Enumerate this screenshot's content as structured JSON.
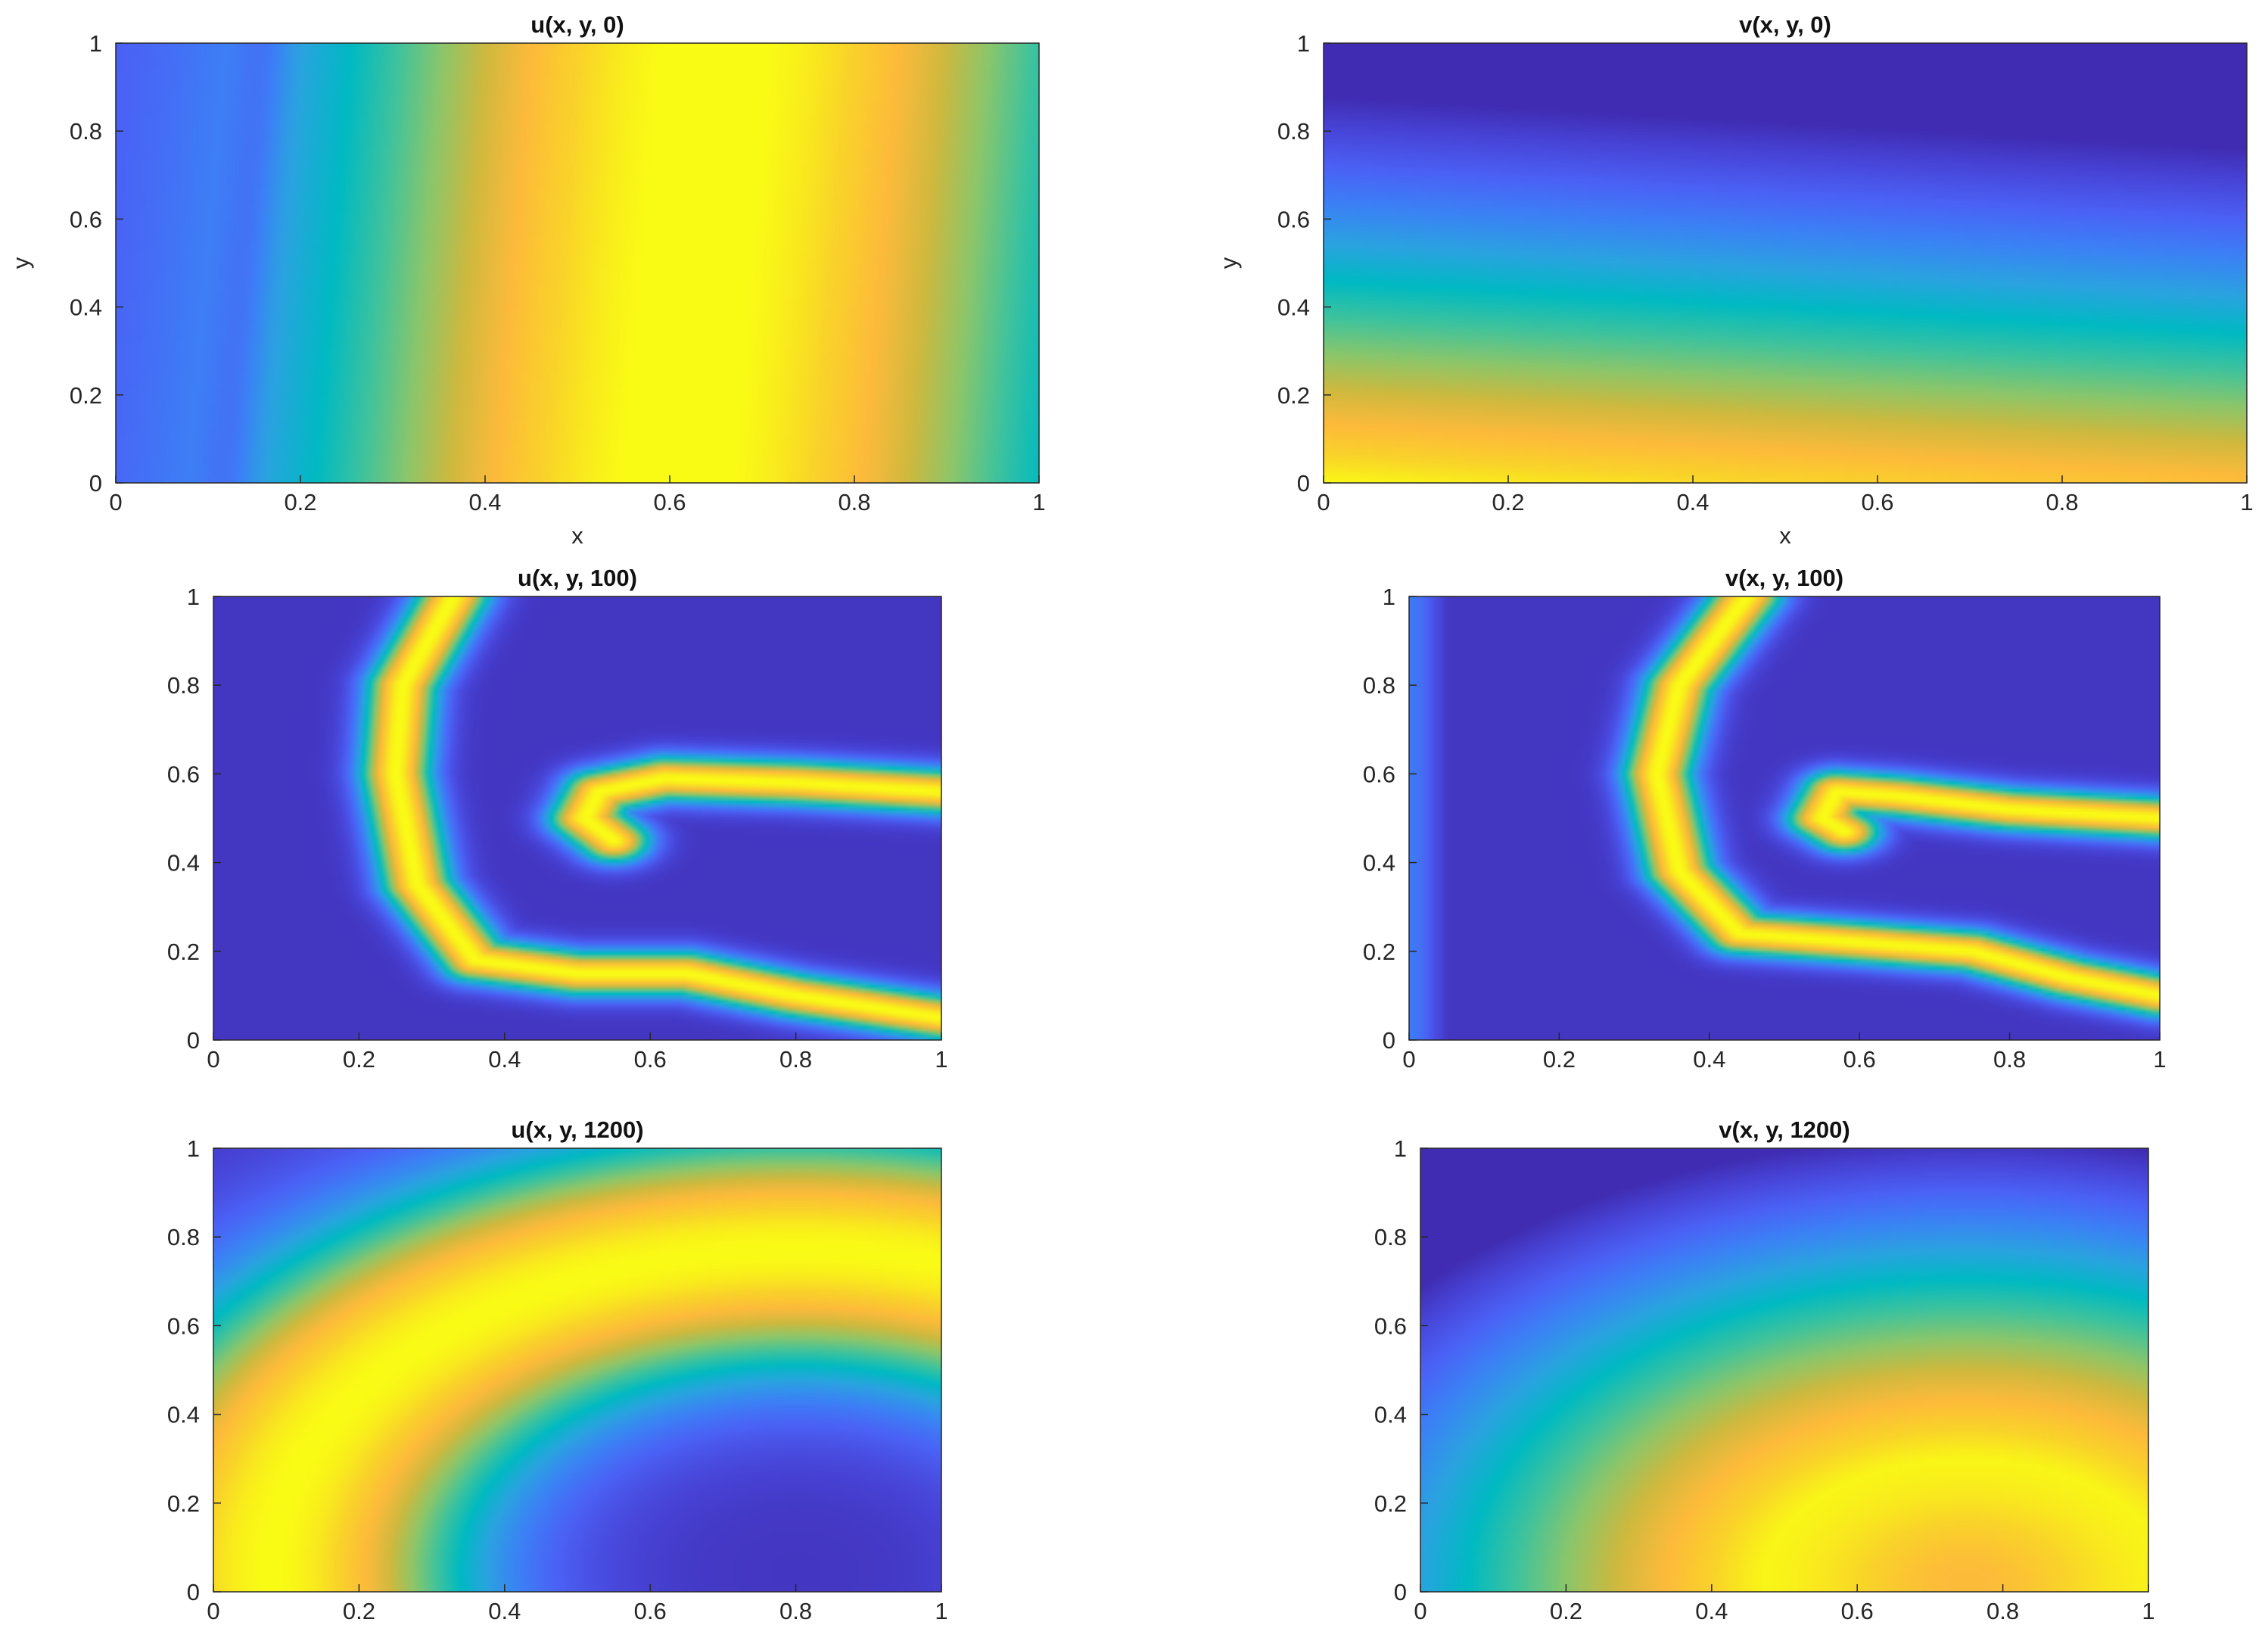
{
  "colormap": [
    "#3e26a8",
    "#4743d6",
    "#4b61f5",
    "#3b82f5",
    "#2aa3e0",
    "#00bac2",
    "#40c39c",
    "#8cc66a",
    "#ceb93e",
    "#fdba3b",
    "#f9d429",
    "#f9fb15"
  ],
  "chart_data": [
    {
      "type": "heatmap",
      "title": "u(x, y, 0)",
      "xlabel": "x",
      "ylabel": "y",
      "xlim": [
        0,
        1
      ],
      "ylim": [
        0,
        1
      ],
      "xticks": [
        "0",
        "0.2",
        "0.4",
        "0.6",
        "0.8",
        "1"
      ],
      "yticks": [
        "0",
        "0.2",
        "0.4",
        "0.6",
        "0.8",
        "1"
      ],
      "colorbar": false,
      "grid": false
    },
    {
      "type": "heatmap",
      "title": "v(x, y, 0)",
      "xlabel": "x",
      "ylabel": "y",
      "xlim": [
        0,
        1
      ],
      "ylim": [
        0,
        1
      ],
      "xticks": [
        "0",
        "0.2",
        "0.4",
        "0.6",
        "0.8",
        "1"
      ],
      "yticks": [
        "0",
        "0.2",
        "0.4",
        "0.6",
        "0.8",
        "1"
      ],
      "colorbar": false,
      "grid": false
    },
    {
      "type": "heatmap",
      "title": "u(x, y, 100)",
      "xlabel": "",
      "ylabel": "",
      "xlim": [
        0,
        1
      ],
      "ylim": [
        0,
        1
      ],
      "xticks": [
        "0",
        "0.2",
        "0.4",
        "0.6",
        "0.8",
        "1"
      ],
      "yticks": [
        "0",
        "0.2",
        "0.4",
        "0.6",
        "0.8",
        "1"
      ],
      "colorbar": false,
      "grid": false
    },
    {
      "type": "heatmap",
      "title": "v(x, y, 100)",
      "xlabel": "",
      "ylabel": "",
      "xlim": [
        0,
        1
      ],
      "ylim": [
        0,
        1
      ],
      "xticks": [
        "0",
        "0.2",
        "0.4",
        "0.6",
        "0.8",
        "1"
      ],
      "yticks": [
        "0",
        "0.2",
        "0.4",
        "0.6",
        "0.8",
        "1"
      ],
      "colorbar": false,
      "grid": false
    },
    {
      "type": "heatmap",
      "title": "u(x, y, 1200)",
      "xlabel": "",
      "ylabel": "",
      "xlim": [
        0,
        1
      ],
      "ylim": [
        0,
        1
      ],
      "xticks": [
        "0",
        "0.2",
        "0.4",
        "0.6",
        "0.8",
        "1"
      ],
      "yticks": [
        "0",
        "0.2",
        "0.4",
        "0.6",
        "0.8",
        "1"
      ],
      "colorbar": false,
      "grid": false
    },
    {
      "type": "heatmap",
      "title": "v(x, y, 1200)",
      "xlabel": "",
      "ylabel": "",
      "xlim": [
        0,
        1
      ],
      "ylim": [
        0,
        1
      ],
      "xticks": [
        "0",
        "0.2",
        "0.4",
        "0.6",
        "0.8",
        "1"
      ],
      "yticks": [
        "0",
        "0.2",
        "0.4",
        "0.6",
        "0.8",
        "1"
      ],
      "colorbar": false,
      "grid": false
    }
  ]
}
